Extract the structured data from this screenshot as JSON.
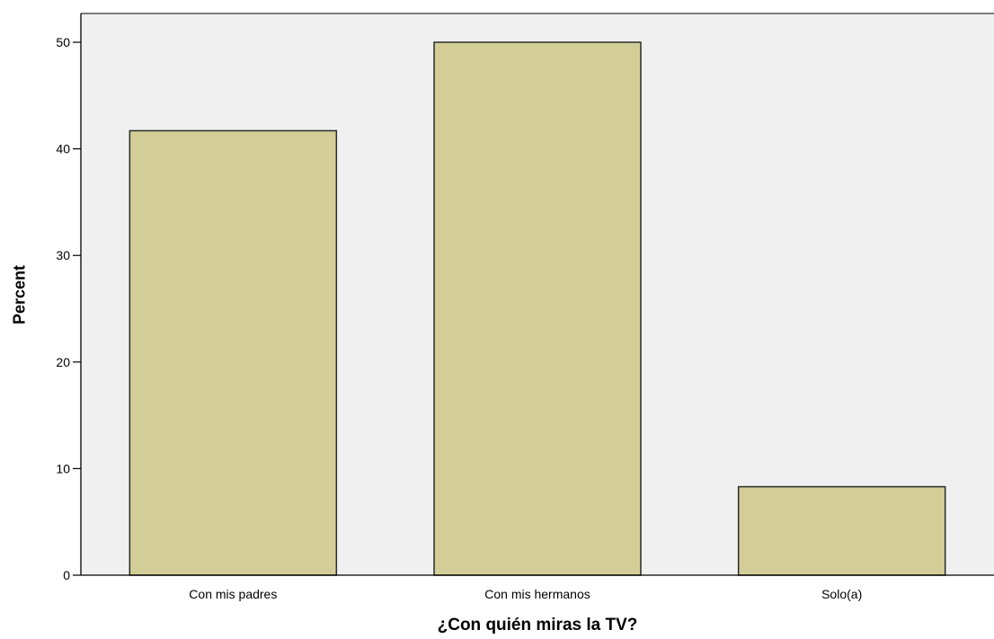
{
  "chart_data": {
    "type": "bar",
    "categories": [
      "Con mis padres",
      "Con mis hermanos",
      "Solo(a)"
    ],
    "values": [
      41.7,
      50.0,
      8.3
    ],
    "xlabel": "¿Con quién miras la TV?",
    "ylabel": "Percent",
    "ylim": [
      0,
      52.7
    ],
    "yticks": [
      0,
      10,
      20,
      30,
      40,
      50
    ],
    "grid": false,
    "colors": {
      "plot_background": "#f0f0f0",
      "bar_fill": "#d3ce97",
      "bar_stroke": "#2b2b2b",
      "axis": "#000000"
    }
  }
}
